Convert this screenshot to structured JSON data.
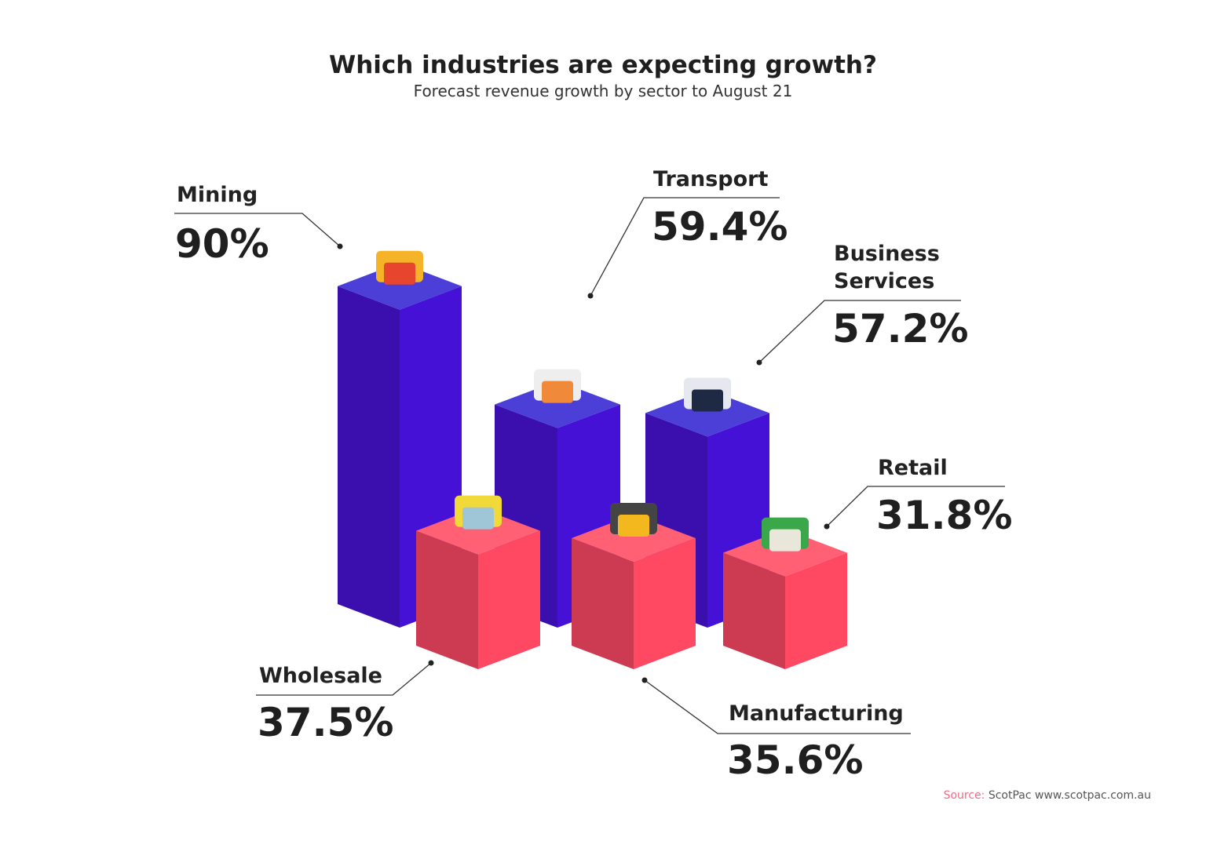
{
  "chart_data": {
    "type": "bar",
    "title": "Which industries are expecting growth?",
    "subtitle": "Forecast revenue growth by sector to August 21",
    "categories": [
      "Mining",
      "Transport",
      "Business Services",
      "Wholesale",
      "Manufacturing",
      "Retail"
    ],
    "label_lines": [
      [
        "Mining"
      ],
      [
        "Transport"
      ],
      [
        "Business",
        "Services"
      ],
      [
        "Wholesale"
      ],
      [
        "Manufacturing"
      ],
      [
        "Retail"
      ]
    ],
    "values": [
      90,
      59.4,
      57.2,
      37.5,
      35.6,
      31.8
    ],
    "value_labels": [
      "90%",
      "59.4%",
      "57.2%",
      "37.5%",
      "35.6%",
      "31.8%"
    ],
    "unit": "%",
    "bar_groups": [
      "blue",
      "blue",
      "blue",
      "red",
      "red",
      "red"
    ],
    "icons": [
      "mining-excavator-icon",
      "delivery-truck-icon",
      "business-handshake-icon",
      "warehouse-icon",
      "robotic-arm-icon",
      "market-store-icon"
    ],
    "colors": {
      "blue_left": "#3a0fae",
      "blue_right": "#4511d6",
      "blue_top": "#4b3fd8",
      "red_left": "#cc3b52",
      "red_right": "#ff4862",
      "red_top": "#ff6074"
    },
    "source": {
      "prefix": "Source:",
      "text": " ScotPac www.scotpac.com.au"
    }
  }
}
